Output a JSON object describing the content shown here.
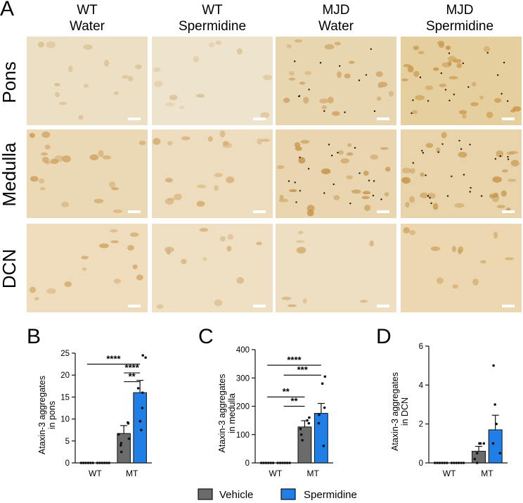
{
  "figure": {
    "panel_a_letter": "A",
    "columns": [
      {
        "line1": "WT",
        "line2": "Water"
      },
      {
        "line1": "WT",
        "line2": "Spermidine"
      },
      {
        "line1": "MJD",
        "line2": "Water"
      },
      {
        "line1": "MJD",
        "line2": "Spermidine"
      }
    ],
    "rows": [
      "Pons",
      "Medulla",
      "DCN"
    ],
    "micrographs": [
      [
        {
          "base": "#ecdfc4",
          "cell": "#d8ba88",
          "cells": 14,
          "puncta": 0
        },
        {
          "base": "#eee3cc",
          "cell": "#dcc197",
          "cells": 12,
          "puncta": 0
        },
        {
          "base": "#e8d6b0",
          "cell": "#cfa465",
          "cells": 22,
          "puncta": 12
        },
        {
          "base": "#e6cf9f",
          "cell": "#c99748",
          "cells": 30,
          "puncta": 16
        }
      ],
      [
        {
          "base": "#ebd9b6",
          "cell": "#cfa262",
          "cells": 22,
          "puncta": 0
        },
        {
          "base": "#eddcbd",
          "cell": "#d5ae73",
          "cells": 18,
          "puncta": 0
        },
        {
          "base": "#e9d6b1",
          "cell": "#c6974e",
          "cells": 26,
          "puncta": 18
        },
        {
          "base": "#e8d3aa",
          "cell": "#c8984f",
          "cells": 28,
          "puncta": 22
        }
      ],
      [
        {
          "base": "#eedcbc",
          "cell": "#d2a866",
          "cells": 14,
          "puncta": 0
        },
        {
          "base": "#efe0c4",
          "cell": "#d5b07a",
          "cells": 12,
          "puncta": 0
        },
        {
          "base": "#efdfc2",
          "cell": "#d3ae74",
          "cells": 8,
          "puncta": 0
        },
        {
          "base": "#ecd7b0",
          "cell": "#cfa466",
          "cells": 12,
          "puncta": 0
        }
      ]
    ],
    "legend": {
      "vehicle_label": "Vehicle",
      "spermidine_label": "Spermidine",
      "vehicle_color": "#6b6b6b",
      "spermidine_color": "#1f7fe6"
    }
  },
  "chart_data": [
    {
      "panel": "B",
      "type": "bar",
      "ylabel_line1": "Ataxin-3 aggregates",
      "ylabel_line2": "in pons",
      "ylim": [
        0,
        25
      ],
      "yticks": [
        0,
        5,
        10,
        15,
        20,
        25
      ],
      "categories": [
        "WT",
        "MT"
      ],
      "series": [
        {
          "name": "Vehicle",
          "values": [
            0,
            6.7
          ],
          "errors": [
            0,
            1.8
          ],
          "points": [
            [
              0,
              0,
              0,
              0,
              0,
              0
            ],
            [
              9.2,
              9.0,
              6.5,
              5.5,
              4.5,
              4.0,
              2.5
            ]
          ]
        },
        {
          "name": "Spermidine",
          "values": [
            0,
            16.0
          ],
          "errors": [
            0,
            2.8
          ],
          "points": [
            [
              0,
              0,
              0,
              0,
              0,
              0
            ],
            [
              24.5,
              24.0,
              17.0,
              16.0,
              12.5,
              9.5,
              7.5
            ]
          ]
        }
      ],
      "significance": [
        {
          "label": "****",
          "from": [
            0,
            0
          ],
          "to": [
            1,
            1
          ],
          "y": 22.5
        },
        {
          "label": "****",
          "from": [
            1,
            0
          ],
          "to": [
            1,
            1
          ],
          "y": 20.5
        },
        {
          "label": "**",
          "from": [
            1,
            0
          ],
          "to": [
            1,
            1
          ],
          "y": 18.5
        }
      ]
    },
    {
      "panel": "C",
      "type": "bar",
      "ylabel_line1": "Ataxin-3 aggregates",
      "ylabel_line2": "in medulla",
      "ylim": [
        0,
        400
      ],
      "yticks": [
        0,
        100,
        200,
        300,
        400
      ],
      "categories": [
        "WT",
        "MT"
      ],
      "series": [
        {
          "name": "Vehicle",
          "values": [
            0,
            127
          ],
          "errors": [
            0,
            22
          ],
          "points": [
            [
              0,
              0,
              0,
              0,
              0,
              0
            ],
            [
              160,
              150,
              140,
              120,
              100,
              80
            ]
          ]
        },
        {
          "name": "Spermidine",
          "values": [
            0,
            175
          ],
          "errors": [
            0,
            35
          ],
          "points": [
            [
              0,
              0,
              0,
              0,
              0,
              0
            ],
            [
              305,
              280,
              195,
              170,
              140,
              60
            ]
          ]
        }
      ],
      "significance": [
        {
          "label": "****",
          "from": [
            0,
            0
          ],
          "to": [
            1,
            1
          ],
          "y": 345
        },
        {
          "label": "***",
          "from": [
            0,
            1
          ],
          "to": [
            1,
            1
          ],
          "y": 310
        },
        {
          "label": "**",
          "from": [
            0,
            0
          ],
          "to": [
            1,
            0
          ],
          "y": 233
        },
        {
          "label": "**",
          "from": [
            0,
            1
          ],
          "to": [
            1,
            0
          ],
          "y": 200
        }
      ]
    },
    {
      "panel": "D",
      "type": "bar",
      "ylabel_line1": "Ataxin-3 aggregates",
      "ylabel_line2": "in DCN",
      "ylim": [
        0,
        6
      ],
      "yticks": [
        0,
        2,
        4,
        6
      ],
      "categories": [
        "WT",
        "MT"
      ],
      "series": [
        {
          "name": "Vehicle",
          "values": [
            0,
            0.6
          ],
          "errors": [
            0,
            0.25
          ],
          "points": [
            [
              0,
              0,
              0,
              0,
              0,
              0
            ],
            [
              1.0,
              1.0,
              1.0,
              0.5,
              0.2,
              0.0
            ]
          ]
        },
        {
          "name": "Spermidine",
          "values": [
            0,
            1.7
          ],
          "errors": [
            0,
            0.75
          ],
          "points": [
            [
              0,
              0,
              0,
              0,
              0,
              0
            ],
            [
              5.0,
              3.0,
              2.0,
              1.0,
              0.5
            ]
          ]
        }
      ],
      "significance": []
    }
  ]
}
